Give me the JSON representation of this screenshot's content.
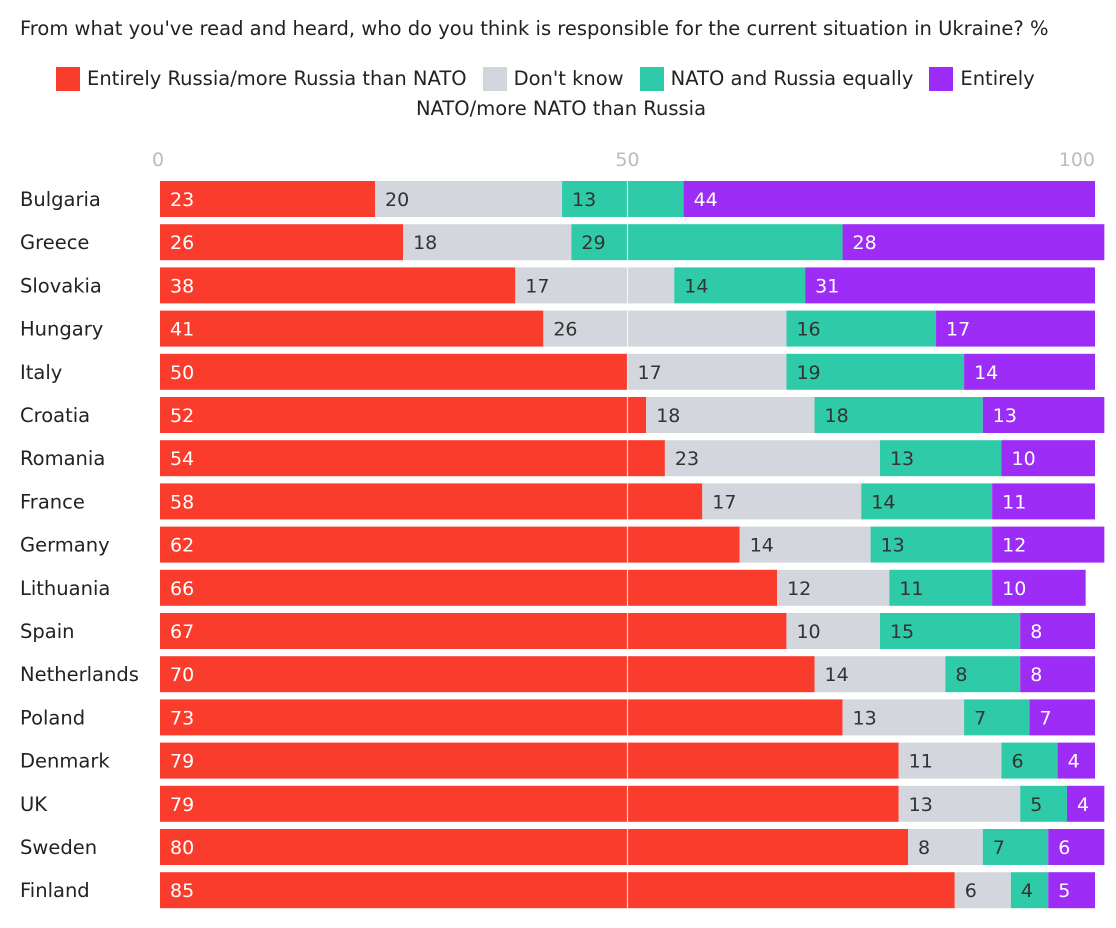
{
  "chart_data": {
    "type": "bar",
    "orientation": "horizontal",
    "stacked": true,
    "title": "From what you've read and heard, who do you think is responsible for the current situation in Ukraine? %",
    "xlim": [
      0,
      100
    ],
    "xticks": [
      "0",
      "50",
      "100"
    ],
    "legend": {
      "placement": "top",
      "items": [
        {
          "label": "Entirely Russia/more Russia than NATO",
          "color": "#fa3c2d"
        },
        {
          "label": "Don't know",
          "color": "#d3d6dc"
        },
        {
          "label": "NATO and Russia equally",
          "color": "#2fcaa7"
        },
        {
          "label": "Entirely",
          "continuation": "NATO/more NATO than Russia",
          "color": "#9d2cf6"
        }
      ]
    },
    "categories": [
      "Bulgaria",
      "Greece",
      "Slovakia",
      "Hungary",
      "Italy",
      "Croatia",
      "Romania",
      "France",
      "Germany",
      "Lithuania",
      "Spain",
      "Netherlands",
      "Poland",
      "Denmark",
      "UK",
      "Sweden",
      "Finland"
    ],
    "series": [
      {
        "name": "Entirely Russia/more Russia than NATO",
        "color": "#fa3c2d",
        "label_color": "#ffffff",
        "values": [
          23,
          26,
          38,
          41,
          50,
          52,
          54,
          58,
          62,
          66,
          67,
          70,
          73,
          79,
          79,
          80,
          85
        ]
      },
      {
        "name": "Don't know",
        "color": "#d3d6dc",
        "label_color": "#333333",
        "values": [
          20,
          18,
          17,
          26,
          17,
          18,
          23,
          17,
          14,
          12,
          10,
          14,
          13,
          11,
          13,
          8,
          6
        ]
      },
      {
        "name": "NATO and Russia equally",
        "color": "#2fcaa7",
        "label_color": "#333333",
        "values": [
          13,
          29,
          14,
          16,
          19,
          18,
          13,
          14,
          13,
          11,
          15,
          8,
          7,
          6,
          5,
          7,
          4
        ]
      },
      {
        "name": "Entirely NATO/more NATO than Russia",
        "color": "#9d2cf6",
        "label_color": "#ffffff",
        "values": [
          44,
          28,
          31,
          17,
          14,
          13,
          10,
          11,
          12,
          10,
          8,
          8,
          7,
          4,
          4,
          6,
          5
        ]
      }
    ]
  }
}
